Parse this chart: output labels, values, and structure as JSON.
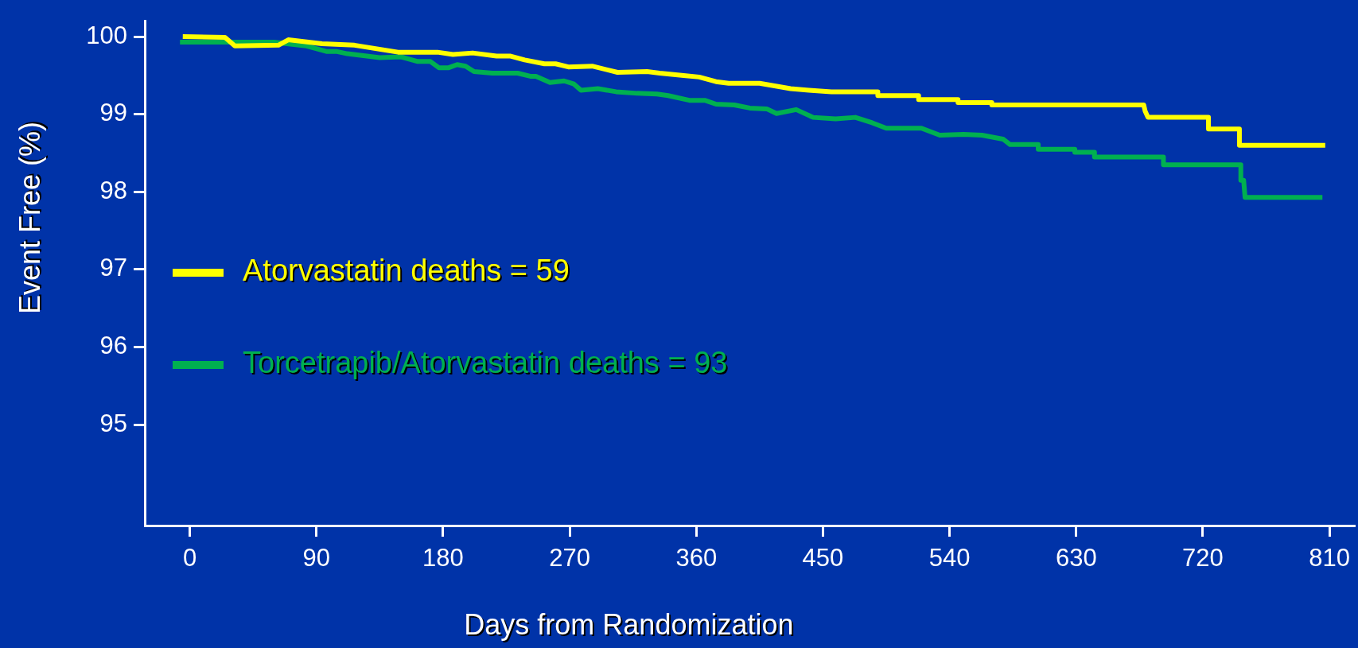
{
  "chart_data": {
    "type": "line",
    "xlabel": "Days from Randomization",
    "ylabel": "Event Free (%)",
    "xlim": [
      -32,
      828
    ],
    "xticks": [
      0,
      90,
      180,
      270,
      360,
      450,
      540,
      630,
      720,
      810
    ],
    "ylim": [
      93.7,
      100.2
    ],
    "yticks": [
      95,
      96,
      97,
      98,
      99,
      100
    ],
    "grid": false,
    "legend": "center left",
    "marker": "none",
    "line_style": "solid",
    "series": [
      {
        "name": "Atorvastatin deaths = 59",
        "color": "#ffff00",
        "x": [
          -5,
          25,
          32,
          63,
          70,
          94,
          117,
          148,
          176,
          187,
          201,
          218,
          228,
          238,
          252,
          260,
          269,
          286,
          304,
          325,
          334,
          351,
          362,
          374,
          383,
          405,
          427,
          440,
          456,
          489,
          489,
          518,
          518,
          546,
          546,
          570,
          570,
          678,
          679,
          681,
          724,
          724,
          746,
          746,
          807
        ],
        "values": [
          100.0,
          99.99,
          99.88,
          99.89,
          99.96,
          99.91,
          99.89,
          99.8,
          99.8,
          99.77,
          99.79,
          99.75,
          99.75,
          99.7,
          99.65,
          99.65,
          99.61,
          99.62,
          99.54,
          99.55,
          99.53,
          99.5,
          99.48,
          99.42,
          99.4,
          99.4,
          99.33,
          99.31,
          99.29,
          99.29,
          99.24,
          99.24,
          99.19,
          99.19,
          99.15,
          99.15,
          99.12,
          99.12,
          99.04,
          98.96,
          98.96,
          98.81,
          98.81,
          98.6,
          98.6
        ]
      },
      {
        "name": "Torcetrapib/Atorvastatin deaths = 93",
        "color": "#00b050",
        "x": [
          -7,
          60,
          69,
          83,
          97,
          104,
          112,
          135,
          150,
          162,
          171,
          177,
          184,
          190,
          196,
          202,
          215,
          233,
          242,
          246,
          256,
          266,
          273,
          278,
          290,
          303,
          318,
          332,
          340,
          355,
          366,
          374,
          387,
          398,
          410,
          417,
          431,
          443,
          459,
          473,
          485,
          495,
          520,
          533,
          550,
          563,
          578,
          583,
          603,
          603,
          629,
          629,
          643,
          643,
          692,
          692,
          747,
          747,
          749,
          750,
          805
        ],
        "values": [
          99.93,
          99.93,
          99.91,
          99.88,
          99.81,
          99.81,
          99.78,
          99.73,
          99.74,
          99.68,
          99.68,
          99.6,
          99.6,
          99.64,
          99.62,
          99.55,
          99.53,
          99.53,
          99.49,
          99.49,
          99.41,
          99.43,
          99.39,
          99.31,
          99.33,
          99.29,
          99.27,
          99.26,
          99.24,
          99.18,
          99.18,
          99.13,
          99.12,
          99.08,
          99.07,
          99.01,
          99.06,
          98.96,
          98.94,
          98.96,
          98.89,
          98.82,
          98.82,
          98.73,
          98.74,
          98.73,
          98.68,
          98.61,
          98.61,
          98.55,
          98.55,
          98.51,
          98.51,
          98.45,
          98.45,
          98.35,
          98.35,
          98.15,
          98.15,
          97.93,
          97.93
        ]
      }
    ]
  }
}
